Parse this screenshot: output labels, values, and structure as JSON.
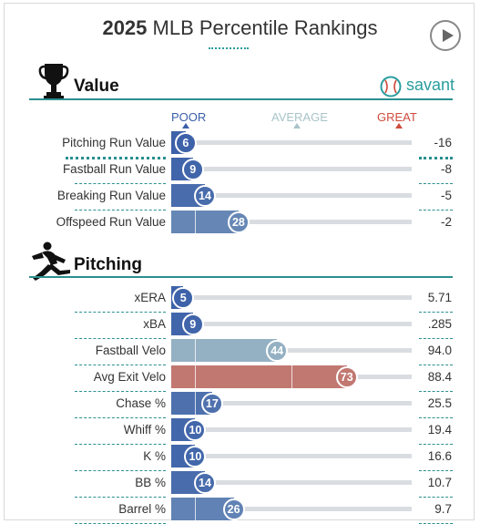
{
  "header": {
    "year": "2025",
    "title": "MLB Percentile Rankings"
  },
  "controls": {
    "play_icon": "play-icon"
  },
  "savant": {
    "label": "savant",
    "logo_icon": "baseball-icon",
    "color": "#2a9d9d"
  },
  "scale": {
    "poor": "POOR",
    "average": "AVERAGE",
    "great": "GREAT"
  },
  "colors": {
    "poor": "#3a5fa8",
    "average": "#a9c4c9",
    "great": "#cf4b3d",
    "track": "#d9dde1",
    "accent": "#2a8f8f"
  },
  "sections": [
    {
      "title": "Value",
      "icon": "trophy-icon",
      "rows": [
        {
          "label": "Pitching Run Value",
          "percentile": 6,
          "value": "-16"
        },
        {
          "label": "Fastball Run Value",
          "percentile": 9,
          "value": "-8"
        },
        {
          "label": "Breaking Run Value",
          "percentile": 14,
          "value": "-5"
        },
        {
          "label": "Offspeed Run Value",
          "percentile": 28,
          "value": "-2"
        }
      ]
    },
    {
      "title": "Pitching",
      "icon": "pitcher-icon",
      "rows": [
        {
          "label": "xERA",
          "percentile": 5,
          "value": "5.71"
        },
        {
          "label": "xBA",
          "percentile": 9,
          "value": ".285"
        },
        {
          "label": "Fastball Velo",
          "percentile": 44,
          "value": "94.0"
        },
        {
          "label": "Avg Exit Velo",
          "percentile": 73,
          "value": "88.4"
        },
        {
          "label": "Chase %",
          "percentile": 17,
          "value": "25.5"
        },
        {
          "label": "Whiff %",
          "percentile": 10,
          "value": "19.4"
        },
        {
          "label": "K %",
          "percentile": 10,
          "value": "16.6"
        },
        {
          "label": "BB %",
          "percentile": 14,
          "value": "10.7"
        },
        {
          "label": "Barrel %",
          "percentile": 26,
          "value": "9.7"
        }
      ]
    }
  ]
}
